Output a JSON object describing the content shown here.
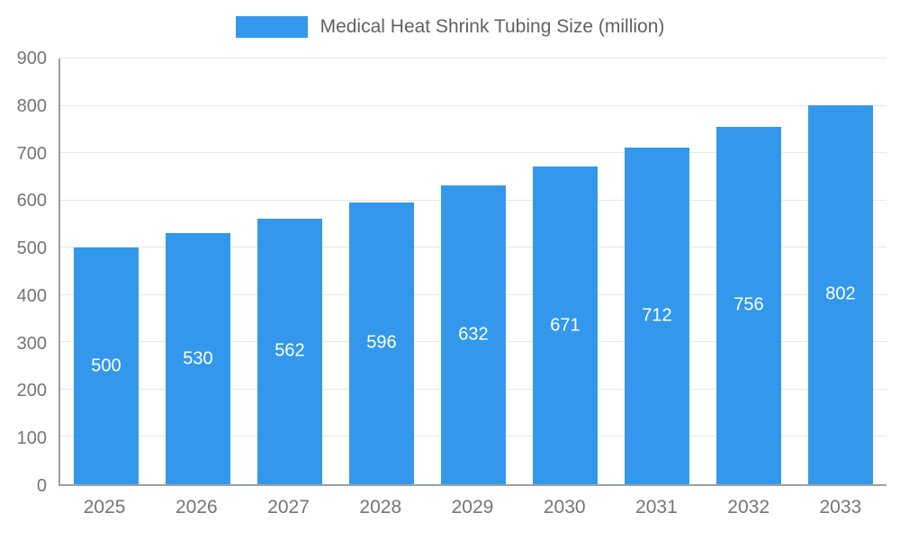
{
  "legend": {
    "title": "Medical Heat Shrink Tubing Size (million)"
  },
  "chart_data": {
    "type": "bar",
    "title": "Medical Heat Shrink Tubing Size (million)",
    "categories": [
      "2025",
      "2026",
      "2027",
      "2028",
      "2029",
      "2030",
      "2031",
      "2032",
      "2033"
    ],
    "values": [
      500,
      530,
      562,
      596,
      632,
      671,
      712,
      756,
      802
    ],
    "xlabel": "",
    "ylabel": "",
    "ylim": [
      0,
      900
    ],
    "ytick_step": 100,
    "grid": true,
    "legend_position": "top",
    "bar_color": "#3398EC",
    "value_label_color": "#FFFFFF",
    "axis_color": "#9AA0A6",
    "grid_color": "#E6E6E6",
    "tick_label_color": "#757575",
    "title_color": "#616161"
  }
}
